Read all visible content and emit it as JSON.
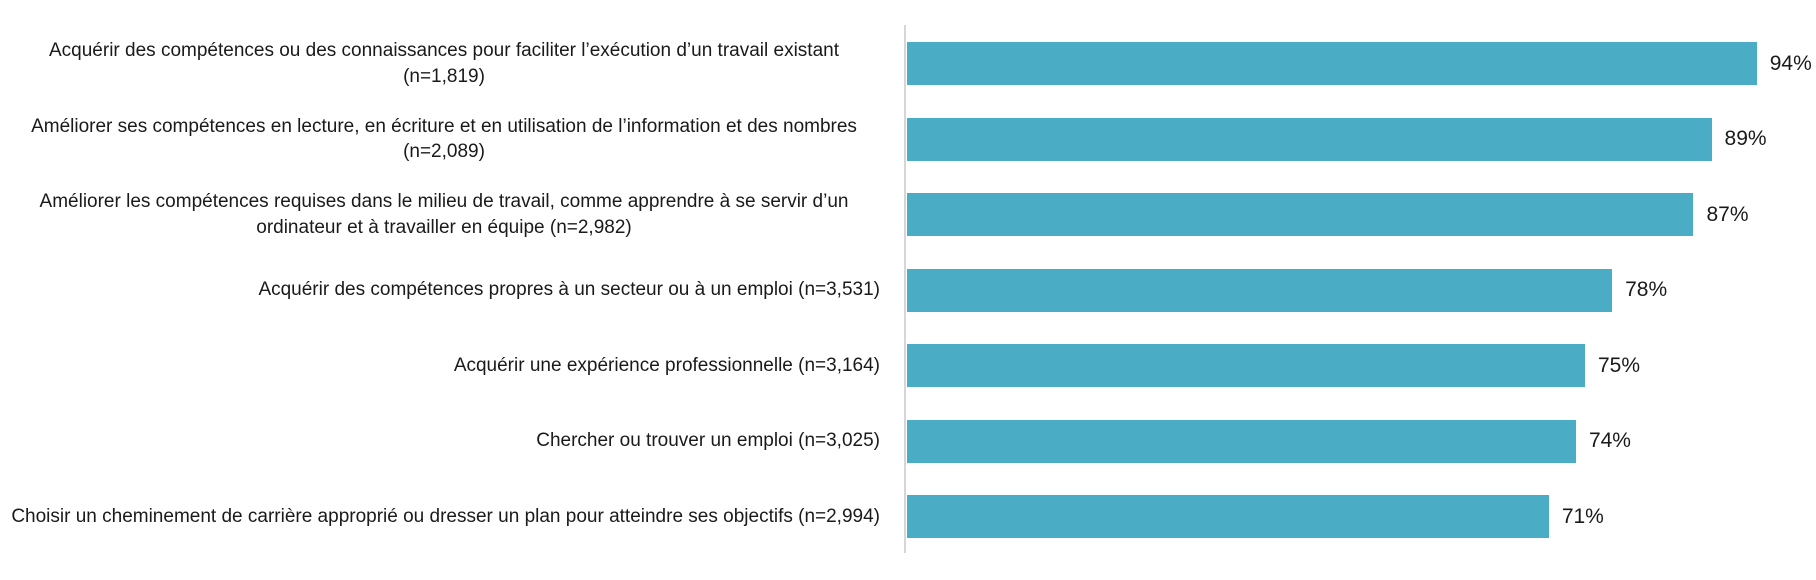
{
  "chart_data": {
    "type": "bar",
    "orientation": "horizontal",
    "title": "",
    "xlabel": "",
    "ylabel": "",
    "xlim": [
      0,
      100
    ],
    "legend": false,
    "gridlines": false,
    "categories": [
      "Acquérir des compétences ou des connaissances pour faciliter l’exécution d’un travail existant (n=1,819)",
      "Améliorer ses compétences en lecture, en écriture et en utilisation de l’information et des nombres (n=2,089)",
      "Améliorer les compétences requises dans le milieu de travail, comme apprendre à se servir d’un ordinateur et à travailler en équipe (n=2,982)",
      "Acquérir des compétences propres à un secteur ou à un emploi (n=3,531)",
      "Acquérir une expérience professionnelle (n=3,164)",
      "Chercher ou trouver un emploi (n=3,025)",
      "Choisir un cheminement de carrière approprié ou dresser un plan pour atteindre ses objectifs (n=2,994)"
    ],
    "values": [
      94,
      89,
      87,
      78,
      75,
      74,
      71
    ],
    "value_labels": [
      "94%",
      "89%",
      "87%",
      "78%",
      "75%",
      "74%",
      "71%"
    ],
    "colors": {
      "bar": "#4BACC6",
      "axis_line": "#D6D6D6",
      "text": "#1A1A1A",
      "background": "#FFFFFF"
    }
  }
}
